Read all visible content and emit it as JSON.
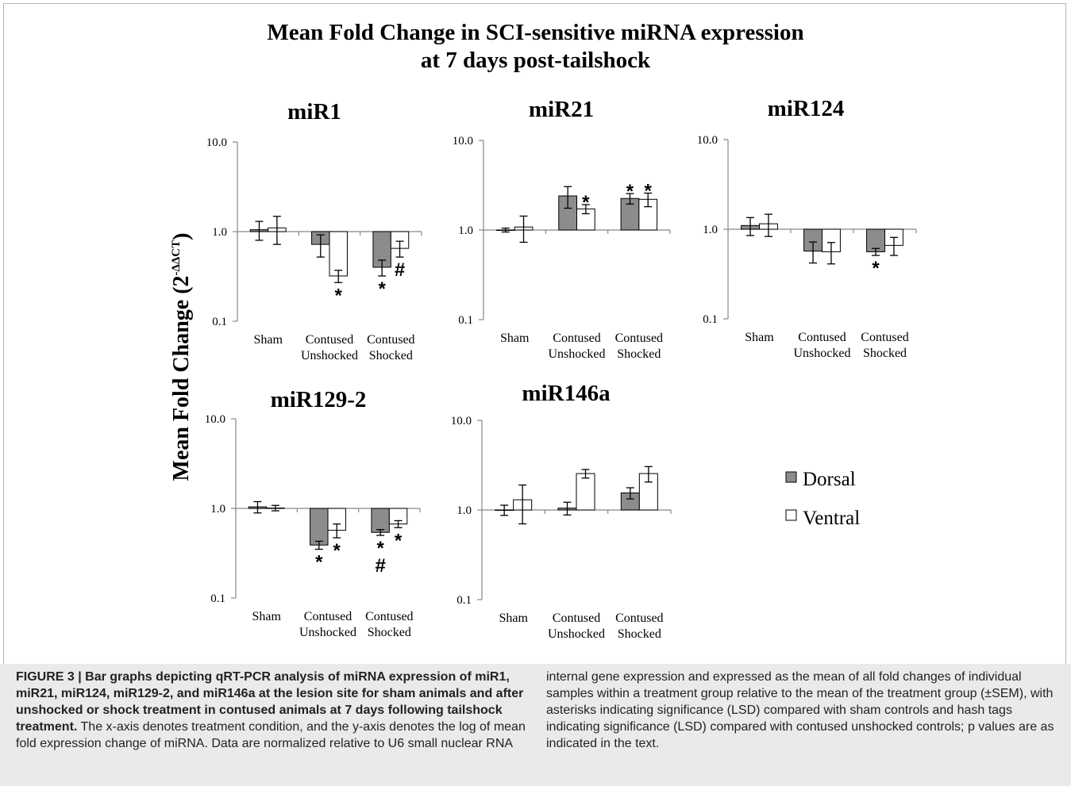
{
  "figure": {
    "title_line1": "Mean Fold Change in SCI-sensitive miRNA expression",
    "title_line2": "at 7 days post-tailshock",
    "ylabel_main": "Mean Fold Change (2",
    "ylabel_sup": "-ΔΔCT",
    "ylabel_close": ")"
  },
  "legend": {
    "items": [
      {
        "label": "Dorsal",
        "color": "#8c8c8c"
      },
      {
        "label": "Ventral",
        "color": "#ffffff"
      }
    ]
  },
  "chart_data": [
    {
      "type": "bar",
      "title": "miR1",
      "yscale": "log",
      "ylim": [
        0.1,
        10
      ],
      "yticks": [
        "10.0",
        "1.0",
        "0.1"
      ],
      "categories": [
        [
          "Sham"
        ],
        [
          "Contused",
          "Unshocked"
        ],
        [
          "Contused",
          "Shocked"
        ]
      ],
      "series": [
        {
          "name": "Dorsal",
          "values": [
            1.05,
            0.72,
            0.4
          ],
          "err": [
            0.25,
            0.2,
            0.08
          ]
        },
        {
          "name": "Ventral",
          "values": [
            1.1,
            0.32,
            0.65
          ],
          "err": [
            0.38,
            0.05,
            0.13
          ]
        }
      ],
      "annotations": [
        {
          "series": 1,
          "cat": 1,
          "text": [
            "*"
          ]
        },
        {
          "series": 0,
          "cat": 2,
          "text": [
            "*"
          ]
        },
        {
          "series": 1,
          "cat": 2,
          "text": [
            "#"
          ]
        }
      ],
      "sig_above": []
    },
    {
      "type": "bar",
      "title": "miR21",
      "yscale": "log",
      "ylim": [
        0.1,
        10
      ],
      "yticks": [
        "10.0",
        "1.0",
        "0.1"
      ],
      "categories": [
        [
          "Sham"
        ],
        [
          "Contused",
          "Unshocked"
        ],
        [
          "Contused",
          "Shocked"
        ]
      ],
      "series": [
        {
          "name": "Dorsal",
          "values": [
            1.0,
            2.4,
            2.25
          ],
          "err": [
            0.05,
            0.65,
            0.3
          ]
        },
        {
          "name": "Ventral",
          "values": [
            1.08,
            1.72,
            2.2
          ],
          "err": [
            0.35,
            0.2,
            0.38
          ]
        }
      ],
      "annotations": [],
      "sig_above": [
        {
          "series": 1,
          "cat": 1,
          "text": "*"
        },
        {
          "series": 0,
          "cat": 2,
          "text": "*"
        },
        {
          "series": 1,
          "cat": 2,
          "text": "*"
        }
      ]
    },
    {
      "type": "bar",
      "title": "miR124",
      "yscale": "log",
      "ylim": [
        0.1,
        10
      ],
      "yticks": [
        "10.0",
        "1.0",
        "0.1"
      ],
      "categories": [
        [
          "Sham"
        ],
        [
          "Contused",
          "Unshocked"
        ],
        [
          "Contused",
          "Shocked"
        ]
      ],
      "series": [
        {
          "name": "Dorsal",
          "values": [
            1.1,
            0.57,
            0.56
          ],
          "err": [
            0.25,
            0.15,
            0.05
          ]
        },
        {
          "name": "Ventral",
          "values": [
            1.15,
            0.56,
            0.66
          ],
          "err": [
            0.32,
            0.15,
            0.15
          ]
        }
      ],
      "annotations": [
        {
          "series": 0,
          "cat": 2,
          "text": [
            "*"
          ]
        }
      ],
      "sig_above": []
    },
    {
      "type": "bar",
      "title": "miR129-2",
      "yscale": "log",
      "ylim": [
        0.1,
        10
      ],
      "yticks": [
        "10.0",
        "1.0",
        "0.1"
      ],
      "categories": [
        [
          "Sham"
        ],
        [
          "Contused",
          "Unshocked"
        ],
        [
          "Contused",
          "Shocked"
        ]
      ],
      "series": [
        {
          "name": "Dorsal",
          "values": [
            1.04,
            0.39,
            0.54
          ],
          "err": [
            0.15,
            0.04,
            0.04
          ]
        },
        {
          "name": "Ventral",
          "values": [
            1.01,
            0.57,
            0.67
          ],
          "err": [
            0.07,
            0.1,
            0.06
          ]
        }
      ],
      "annotations": [
        {
          "series": 0,
          "cat": 1,
          "text": [
            "*"
          ]
        },
        {
          "series": 1,
          "cat": 1,
          "text": [
            "*"
          ]
        },
        {
          "series": 0,
          "cat": 2,
          "text": [
            "*",
            "#"
          ]
        },
        {
          "series": 1,
          "cat": 2,
          "text": [
            "*"
          ]
        }
      ],
      "sig_above": []
    },
    {
      "type": "bar",
      "title": "miR146a",
      "yscale": "log",
      "ylim": [
        0.1,
        10
      ],
      "yticks": [
        "10.0",
        "1.0",
        "0.1"
      ],
      "categories": [
        [
          "Sham"
        ],
        [
          "Contused",
          "Unshocked"
        ],
        [
          "Contused",
          "Shocked"
        ]
      ],
      "series": [
        {
          "name": "Dorsal",
          "values": [
            1.0,
            1.05,
            1.55
          ],
          "err": [
            0.13,
            0.17,
            0.22
          ]
        },
        {
          "name": "Ventral",
          "values": [
            1.3,
            2.55,
            2.55
          ],
          "err": [
            0.6,
            0.28,
            0.5
          ]
        }
      ],
      "annotations": [],
      "sig_above": []
    }
  ],
  "caption": {
    "heading": "FIGURE 3 | Bar graphs depicting qRT-PCR analysis of miRNA expression of miR1, miR21, miR124, miR129-2, and miR146a at the lesion site for sham animals and after unshocked or shock treatment in contused animals at 7 days following tailshock treatment.",
    "left_rest": " The x-axis denotes treatment condition, and the y-axis denotes the log of mean fold expression change of miRNA. Data are normalized relative to U6 small nuclear RNA",
    "right": "internal gene expression and expressed as the mean of all fold changes of individual samples within a treatment group relative to the mean of the treatment group (±SEM), with asterisks indicating significance (LSD) compared with sham controls and hash tags indicating significance (LSD) compared with contused unshocked controls; p values are as indicated in the text."
  }
}
